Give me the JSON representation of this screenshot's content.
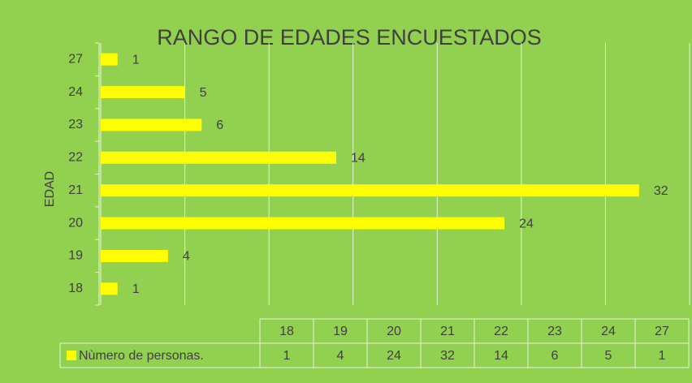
{
  "chart_data": {
    "type": "bar",
    "orientation": "horizontal",
    "title": "RANGO DE EDADES ENCUESTADOS",
    "y_label": "EDAD",
    "categories": [
      "18",
      "19",
      "20",
      "21",
      "22",
      "23",
      "24",
      "27"
    ],
    "series": [
      {
        "name": "Nùmero de personas.",
        "color": "#ffff00",
        "values": [
          1,
          4,
          24,
          32,
          14,
          6,
          5,
          1
        ]
      }
    ],
    "xlim": [
      0,
      35
    ],
    "xticks": [
      0,
      5,
      10,
      15,
      20,
      25,
      30,
      35
    ],
    "grid": true,
    "data_table": true
  }
}
